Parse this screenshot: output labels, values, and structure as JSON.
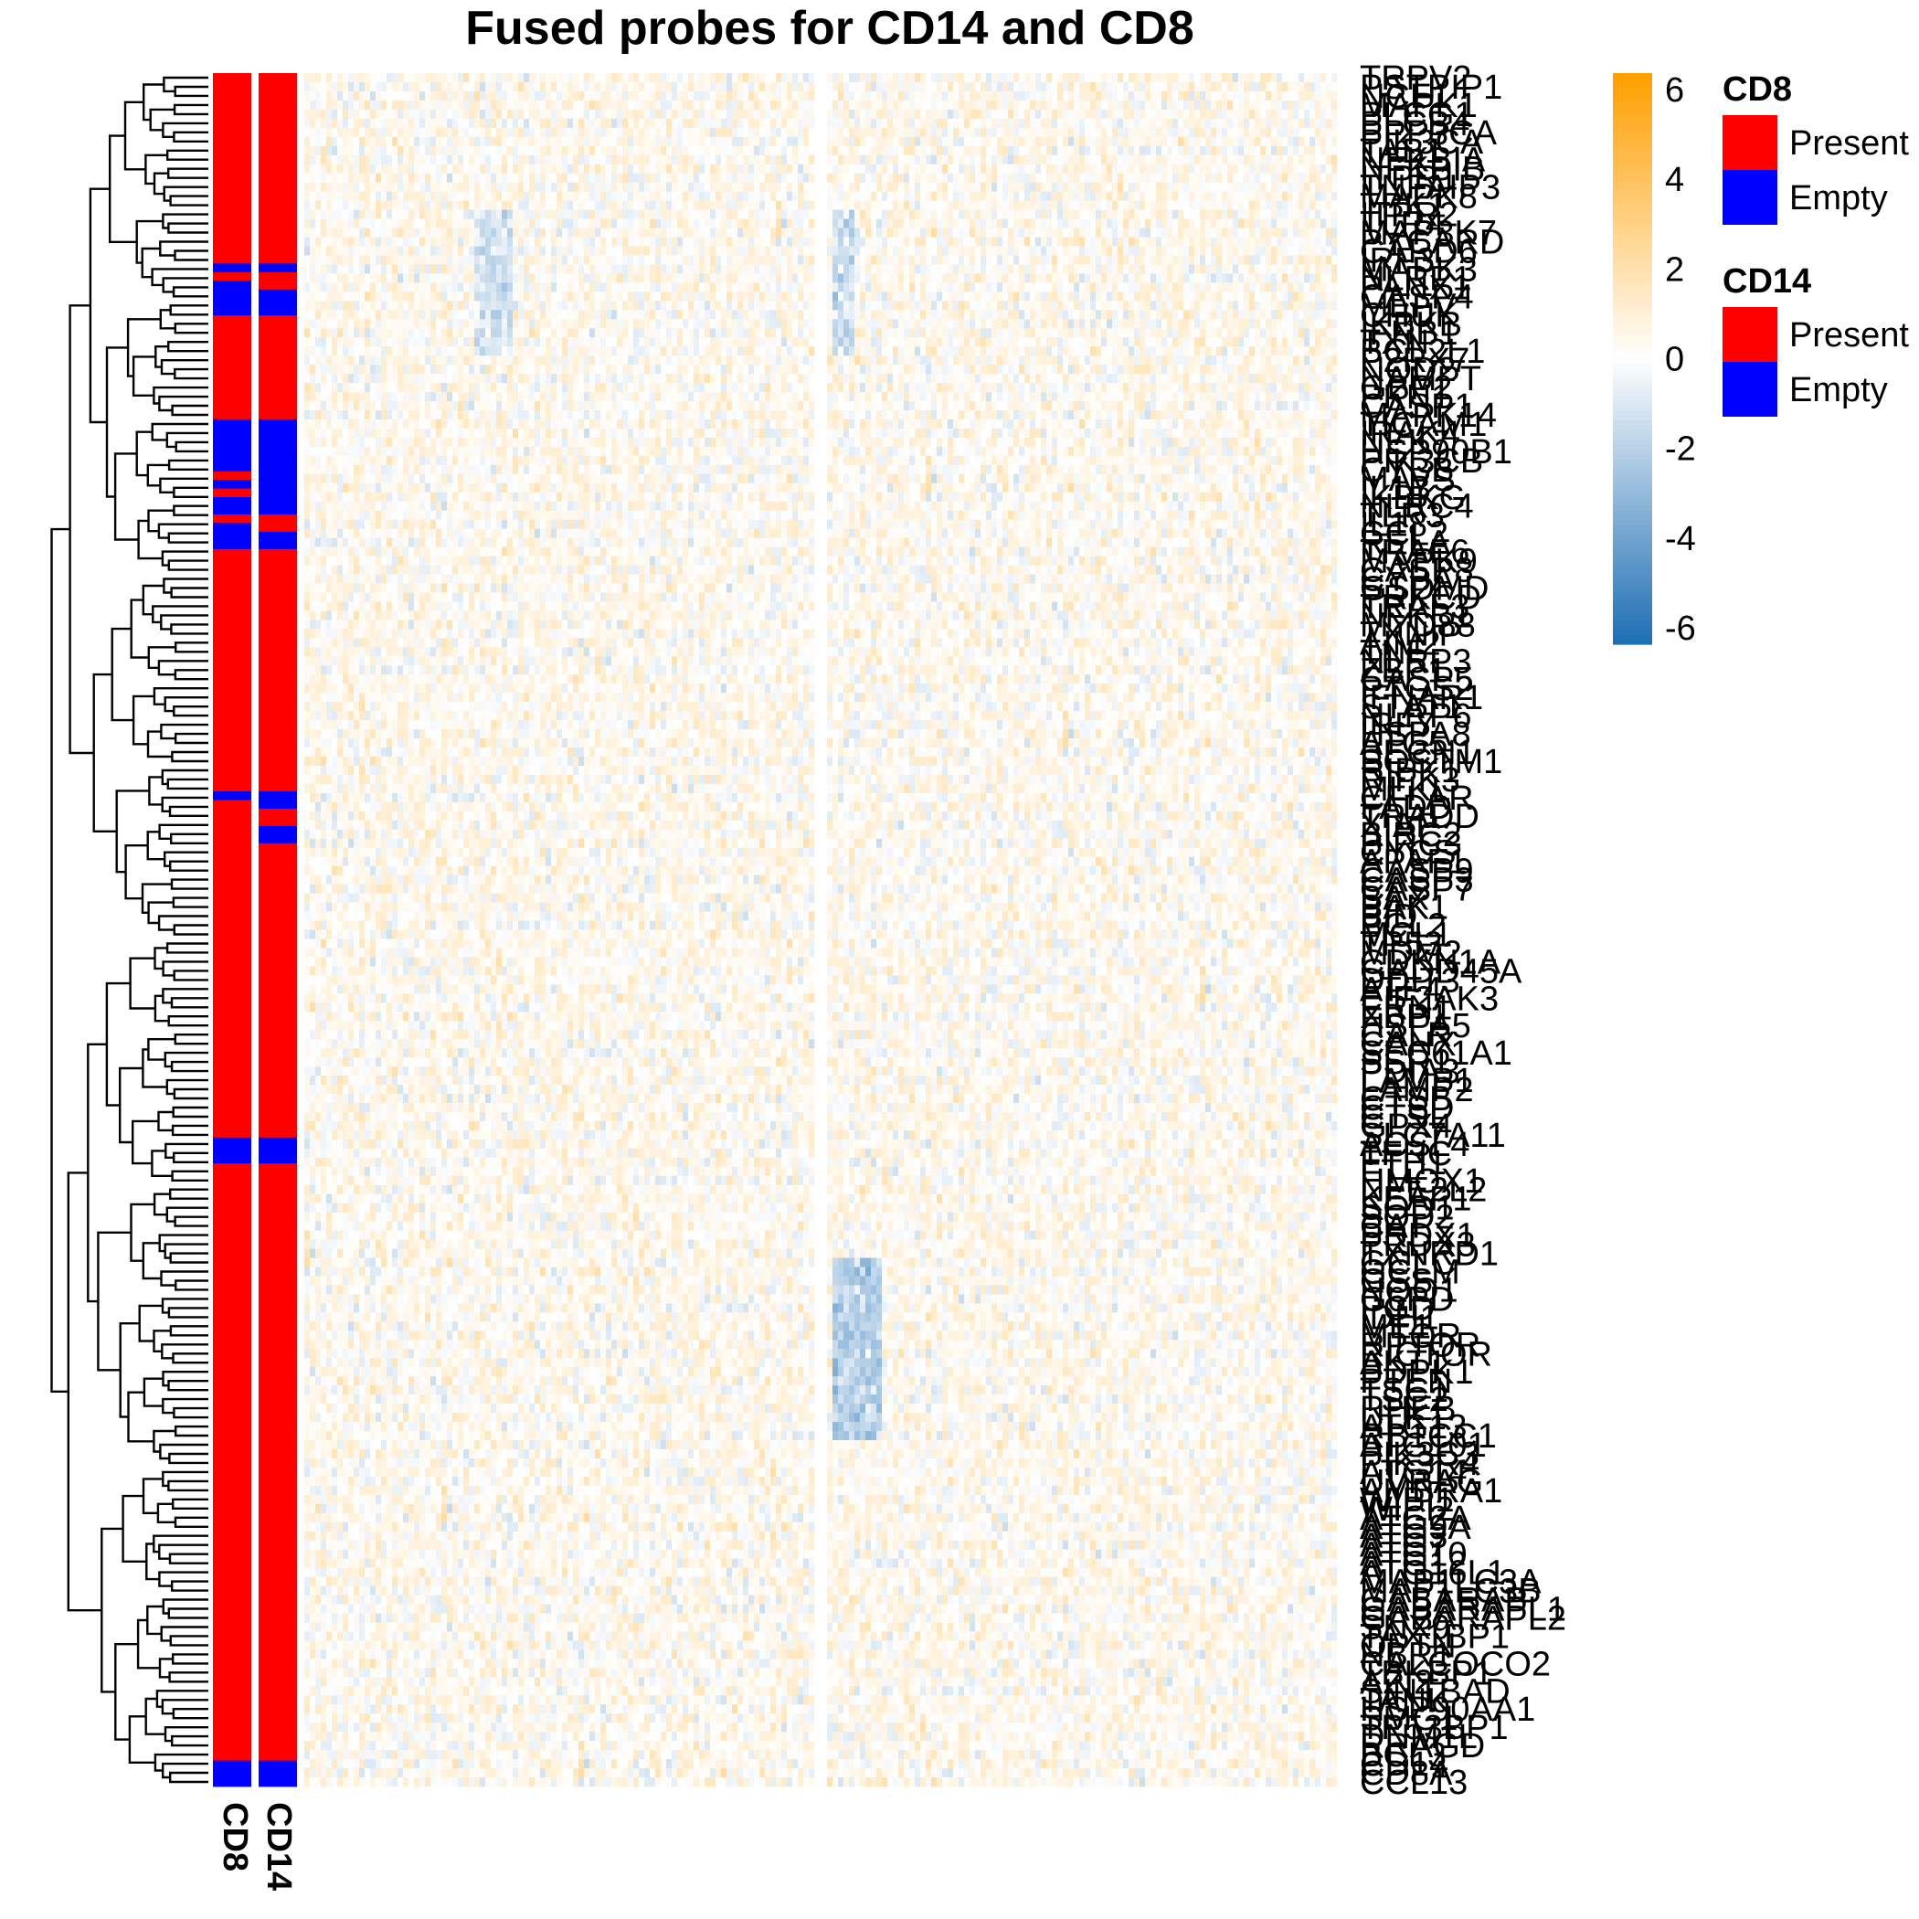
{
  "chart_data": {
    "type": "heatmap",
    "title": "Fused probes for CD14 and CD8",
    "row_labels": [
      "TRPV2",
      "PSTPIP1",
      "NCF1",
      "MAPK1",
      "PLCG1",
      "PLCB4",
      "PPP3CA",
      "PIK3CA",
      "TAB1",
      "NFKBIA",
      "NFKBIB",
      "ITPR1",
      "TNFAIP3",
      "MAPK8",
      "TBK1",
      "ITPR2",
      "TLR4",
      "MAP3K7",
      "PYCARD",
      "CARD6",
      "IRF3",
      "MAPK3",
      "NLRP1",
      "PANX1",
      "CASP4",
      "MEFV",
      "CHUK",
      "IKBKB",
      "IFNB1",
      "TXN",
      "BCL2L1",
      "P2RX7",
      "NOD2",
      "NAMPT",
      "GBP2",
      "PKN1",
      "CASP1",
      "MAPK14",
      "TICAM1",
      "IRAK4",
      "NEK7",
      "HSP90B1",
      "PIK3CB",
      "CYBB",
      "MAVS",
      "IL1B",
      "IKBKG",
      "NLRC4",
      "TLR3",
      "IL18",
      "CCL2",
      "RELA",
      "TRAF6",
      "MAPK9",
      "CASP8",
      "CYBA",
      "GSDMD",
      "PRKCD",
      "TRAF3",
      "NFKB1",
      "MYD88",
      "TXNIP",
      "AIM2",
      "TNF",
      "NLRP3",
      "ZBP1",
      "CASP5",
      "PTGS2",
      "IFNAR1",
      "STAT1",
      "NLRP6",
      "IRF7",
      "HSPA8",
      "ATG5",
      "BECN1",
      "SQSTM1",
      "RIPK1",
      "RIPK3",
      "MLKL",
      "CFLAR",
      "FADD",
      "TRADD",
      "XIAP",
      "BIRC2",
      "BIRC3",
      "CYCS",
      "APAF1",
      "CASP9",
      "CASP3",
      "CASP7",
      "BAX",
      "BAK1",
      "BID",
      "BCL2",
      "MCL1",
      "TP53",
      "MDM2",
      "CDKN1A",
      "GADD45A",
      "DDIT3",
      "ATF4",
      "EIF2AK3",
      "ERN1",
      "XBP1",
      "HSPA5",
      "CALR",
      "CANX",
      "SEC61A1",
      "SSR1",
      "PDIA3",
      "LAMP1",
      "LAMP2",
      "CTSB",
      "CTSD",
      "CTSL",
      "GPX4",
      "SLC7A11",
      "ACSL4",
      "TFRC",
      "FTH1",
      "FTL",
      "HMOX1",
      "NFE2L2",
      "KEAP1",
      "SOD1",
      "SOD2",
      "CAT",
      "PRDX1",
      "PRDX3",
      "TXNRD1",
      "GCLC",
      "GCLM",
      "GSS",
      "NQO1",
      "G6PD",
      "PGD",
      "IDH1",
      "ME1",
      "MTOR",
      "RPTOR",
      "RICTOR",
      "AKT1",
      "PDPK1",
      "PTEN",
      "TSC1",
      "TSC2",
      "RHEB",
      "ULK1",
      "ATG13",
      "RB1CC1",
      "ATG101",
      "PIK3C3",
      "PIK3R4",
      "ATG14",
      "UVRAG",
      "AMBRA1",
      "WIPI1",
      "WIPI2",
      "ATG2A",
      "ATG9A",
      "ATG3",
      "ATG7",
      "ATG10",
      "ATG12",
      "ATG16L1",
      "MAP1LC3A",
      "MAP1LC3B",
      "GABARAP",
      "GABARAPL1",
      "GABARAPL2",
      "SNX9",
      "TAX1BP1",
      "OPTN",
      "NBR1",
      "CALCOCO2",
      "TBKBP1",
      "AZI2",
      "SINTBAD",
      "TANK",
      "HSP90AA1",
      "SMG1",
      "TP53BP1",
      "DNM1L",
      "RRAGD",
      "BCL3",
      "CD14",
      "CD8A",
      "CCL13"
    ],
    "annotation_columns": [
      "CD8",
      "CD14"
    ],
    "legend_continuous": {
      "ticks": [
        "6",
        "4",
        "2",
        "0",
        "-2",
        "-4",
        "-6"
      ],
      "range": [
        -6,
        6
      ],
      "low_color": "#1f6fb4",
      "mid_color": "#ffffff",
      "high_color": "#ff9f00"
    },
    "legend_groups": [
      {
        "title": "CD8",
        "items": [
          {
            "label": "Present",
            "color": "#ff0000"
          },
          {
            "label": "Empty",
            "color": "#0000ff"
          }
        ]
      },
      {
        "title": "CD14",
        "items": [
          {
            "label": "Present",
            "color": "#ff0000"
          },
          {
            "label": "Empty",
            "color": "#0000ff"
          }
        ]
      }
    ],
    "cd8_annotation": [
      "P",
      "P",
      "P",
      "P",
      "P",
      "P",
      "P",
      "P",
      "P",
      "P",
      "P",
      "P",
      "P",
      "P",
      "P",
      "P",
      "P",
      "P",
      "P",
      "P",
      "P",
      "P",
      "E",
      "P",
      "E",
      "E",
      "E",
      "E",
      "P",
      "P",
      "P",
      "P",
      "P",
      "P",
      "P",
      "P",
      "P",
      "P",
      "P",
      "P",
      "E",
      "E",
      "E",
      "E",
      "E",
      "E",
      "P",
      "E",
      "P",
      "E",
      "E",
      "P",
      "E",
      "E",
      "E",
      "P",
      "P",
      "P",
      "P",
      "P",
      "P",
      "P",
      "P",
      "P",
      "P",
      "P",
      "P",
      "P",
      "P",
      "P",
      "P",
      "P",
      "P",
      "P",
      "P",
      "P",
      "P",
      "P",
      "P",
      "P",
      "P",
      "P",
      "P",
      "E",
      "P",
      "P",
      "P",
      "P",
      "P",
      "P",
      "P",
      "P",
      "P",
      "P",
      "P",
      "P",
      "P",
      "P",
      "P",
      "P",
      "P",
      "P",
      "P",
      "P",
      "P",
      "P",
      "P",
      "P",
      "P",
      "P",
      "P",
      "P",
      "P",
      "P",
      "P",
      "P",
      "P",
      "P",
      "P",
      "P",
      "P",
      "P",
      "P",
      "E",
      "E",
      "E",
      "P",
      "P",
      "P",
      "P",
      "P",
      "P",
      "P",
      "P",
      "P",
      "P",
      "P",
      "P",
      "P",
      "P",
      "P",
      "P",
      "P",
      "P",
      "P",
      "P",
      "P",
      "P",
      "P",
      "P",
      "P",
      "P",
      "P",
      "P",
      "P",
      "P",
      "P",
      "P",
      "P",
      "P",
      "P",
      "P",
      "P",
      "P",
      "P",
      "P",
      "P",
      "P",
      "P",
      "P",
      "P",
      "P",
      "P",
      "P",
      "P",
      "P",
      "P",
      "P",
      "P",
      "P",
      "P",
      "P",
      "P",
      "P",
      "P",
      "P",
      "P",
      "P",
      "P",
      "P",
      "P",
      "P",
      "P",
      "P",
      "P",
      "E",
      "E",
      "E"
    ],
    "cd14_annotation": [
      "P",
      "P",
      "P",
      "P",
      "P",
      "P",
      "P",
      "P",
      "P",
      "P",
      "P",
      "P",
      "P",
      "P",
      "P",
      "P",
      "P",
      "P",
      "P",
      "P",
      "P",
      "P",
      "E",
      "P",
      "P",
      "E",
      "E",
      "E",
      "P",
      "P",
      "P",
      "P",
      "P",
      "P",
      "P",
      "P",
      "P",
      "P",
      "P",
      "P",
      "E",
      "E",
      "E",
      "E",
      "E",
      "E",
      "E",
      "E",
      "E",
      "E",
      "E",
      "P",
      "P",
      "E",
      "E",
      "P",
      "P",
      "P",
      "P",
      "P",
      "P",
      "P",
      "P",
      "P",
      "P",
      "P",
      "P",
      "P",
      "P",
      "P",
      "P",
      "P",
      "P",
      "P",
      "P",
      "P",
      "P",
      "P",
      "P",
      "P",
      "P",
      "P",
      "P",
      "E",
      "E",
      "P",
      "P",
      "E",
      "E",
      "P",
      "P",
      "P",
      "P",
      "P",
      "P",
      "P",
      "P",
      "P",
      "P",
      "P",
      "P",
      "P",
      "P",
      "P",
      "P",
      "P",
      "P",
      "P",
      "P",
      "P",
      "P",
      "P",
      "P",
      "P",
      "P",
      "P",
      "P",
      "P",
      "P",
      "P",
      "P",
      "P",
      "P",
      "E",
      "E",
      "E",
      "P",
      "P",
      "P",
      "P",
      "P",
      "P",
      "P",
      "P",
      "P",
      "P",
      "P",
      "P",
      "P",
      "P",
      "P",
      "P",
      "P",
      "P",
      "P",
      "P",
      "P",
      "P",
      "P",
      "P",
      "P",
      "P",
      "P",
      "P",
      "P",
      "P",
      "P",
      "P",
      "P",
      "P",
      "P",
      "P",
      "P",
      "P",
      "P",
      "P",
      "P",
      "P",
      "P",
      "P",
      "P",
      "P",
      "P",
      "P",
      "P",
      "P",
      "P",
      "P",
      "P",
      "P",
      "P",
      "P",
      "P",
      "P",
      "P",
      "P",
      "P",
      "P",
      "P",
      "P",
      "P",
      "P",
      "P",
      "P",
      "P",
      "E",
      "E",
      "E"
    ]
  }
}
